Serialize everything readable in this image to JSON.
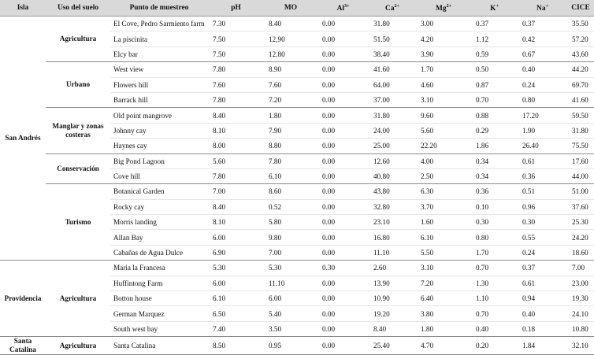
{
  "headers": {
    "isla": "Isla",
    "uso": "Uso del suelo",
    "punto": "Punto de muestreo",
    "ph": "pH",
    "mo": "MO",
    "al": "Al",
    "al_sup": "3+",
    "ca": "Ca",
    "ca_sup": "2+",
    "mg": "Mg",
    "mg_sup": "2+",
    "k": "K",
    "k_sup": "+",
    "na": "Na",
    "na_sup": "+",
    "cice": "CICE"
  },
  "islands": {
    "san_andres": "San Andrés",
    "providencia": "Providencia",
    "santa_catalina": "Santa Catalina"
  },
  "uses": {
    "agricultura_sa": "Agricultura",
    "urbano": "Urbano",
    "manglar": "Manglar y zonas costeras",
    "conservacion": "Conservación",
    "turismo": "Turismo",
    "agricultura_pr": "Agricultura",
    "agricultura_sc": "Agricultura"
  },
  "rows": [
    {
      "punto": "El Cove, Pedro Sarmiento farm",
      "ph": "7.30",
      "mo": "8.40",
      "al": "0.00",
      "ca": "31.80",
      "mg": "3.00",
      "k": "0.37",
      "na": "0.37",
      "cice": "35.50"
    },
    {
      "punto": "La piscinita",
      "ph": "7.50",
      "mo": "12,90",
      "al": "0.00",
      "ca": "51.50",
      "mg": "4.20",
      "k": "1.12",
      "na": "0.42",
      "cice": "57.20"
    },
    {
      "punto": "Elcy bar",
      "ph": "7.50",
      "mo": "12.80",
      "al": "0.00",
      "ca": "38.40",
      "mg": "3.90",
      "k": "0.59",
      "na": "0.67",
      "cice": "43.60"
    },
    {
      "punto": "West view",
      "ph": "7.80",
      "mo": "8.90",
      "al": "0.00",
      "ca": "41.60",
      "mg": "1.70",
      "k": "0.50",
      "na": "0.40",
      "cice": "44.20"
    },
    {
      "punto": "Flowers hill",
      "ph": "7.60",
      "mo": "7.60",
      "al": "0.00",
      "ca": "64.00",
      "mg": "4.60",
      "k": "0.87",
      "na": "0.24",
      "cice": "69.70"
    },
    {
      "punto": "Barrack hill",
      "ph": "7.80",
      "mo": "7.20",
      "al": "0.00",
      "ca": "37.00",
      "mg": "3.10",
      "k": "0.70",
      "na": "0.80",
      "cice": "41.60"
    },
    {
      "punto": "Old point mangrove",
      "ph": "8.40",
      "mo": "1.80",
      "al": "0.00",
      "ca": "31.80",
      "mg": "9.60",
      "k": "0.88",
      "na": "17.20",
      "cice": "59.50"
    },
    {
      "punto": "Johnny cay",
      "ph": "8.10",
      "mo": "7.90",
      "al": "0.00",
      "ca": "24.00",
      "mg": "5.60",
      "k": "0.29",
      "na": "1.90",
      "cice": "31.80"
    },
    {
      "punto": "Haynes cay",
      "ph": "8.00",
      "mo": "8.80",
      "al": "0.00",
      "ca": "25.00",
      "mg": "22.20",
      "k": "1.86",
      "na": "26.40",
      "cice": "75.50"
    },
    {
      "punto": "Big Pond Lagoon",
      "ph": "5.60",
      "mo": "7.80",
      "al": "0.00",
      "ca": "12.60",
      "mg": "4.00",
      "k": "0.34",
      "na": "0.61",
      "cice": "17.60"
    },
    {
      "punto": "Cove hill",
      "ph": "7.80",
      "mo": "6.10",
      "al": "0.00",
      "ca": "40.80",
      "mg": "2.50",
      "k": "0.34",
      "na": "0.36",
      "cice": "44.00"
    },
    {
      "punto": "Botanical Garden",
      "ph": "7.00",
      "mo": "8.60",
      "al": "0.00",
      "ca": "43.80",
      "mg": "6.30",
      "k": "0.36",
      "na": "0.51",
      "cice": "51.00"
    },
    {
      "punto": "Rocky cay",
      "ph": "8.40",
      "mo": "0.52",
      "al": "0.00",
      "ca": "32.80",
      "mg": "3.70",
      "k": "0.10",
      "na": "0.96",
      "cice": "37.60"
    },
    {
      "punto": "Morris landing",
      "ph": "8.10",
      "mo": "5.80",
      "al": "0.00",
      "ca": "23.10",
      "mg": "1.60",
      "k": "0.30",
      "na": "0.30",
      "cice": "25.30"
    },
    {
      "punto": "Allan Bay",
      "ph": "6.00",
      "mo": "9.80",
      "al": "0.00",
      "ca": "16.80",
      "mg": "6.10",
      "k": "0.80",
      "na": "0.55",
      "cice": "24.20"
    },
    {
      "punto": "Cabañas de Agua Dulce",
      "ph": "6.90",
      "mo": "7.00",
      "al": "0.00",
      "ca": "11.10",
      "mg": "5.50",
      "k": "1.70",
      "na": "0.24",
      "cice": "18.60"
    },
    {
      "punto": "Maria la Francesa",
      "ph": "5.30",
      "mo": "5.30",
      "al": "0.30",
      "ca": "2.60",
      "mg": "3.10",
      "k": "0.70",
      "na": "0.37",
      "cice": "7.00"
    },
    {
      "punto": "Huffintong Farm",
      "ph": "6.00",
      "mo": "11.10",
      "al": "0.00",
      "ca": "13.90",
      "mg": "7.20",
      "k": "1.30",
      "na": "0.61",
      "cice": "23.00"
    },
    {
      "punto": "Botton house",
      "ph": "6.10",
      "mo": "6.00",
      "al": "0.00",
      "ca": "10.90",
      "mg": "6.40",
      "k": "1.10",
      "na": "0.94",
      "cice": "19.30"
    },
    {
      "punto": "German Marquez",
      "ph": "6.50",
      "mo": "5.40",
      "al": "0.00",
      "ca": "19.20",
      "mg": "3.80",
      "k": "0.70",
      "na": "0.40",
      "cice": "24.10"
    },
    {
      "punto": "South west bay",
      "ph": "7.40",
      "mo": "3.50",
      "al": "0.00",
      "ca": "8.40",
      "mg": "1.80",
      "k": "0.40",
      "na": "0.18",
      "cice": "10.80"
    },
    {
      "punto": "Santa Catalina",
      "ph": "8.50",
      "mo": "0.95",
      "al": "0.00",
      "ca": "25.40",
      "mg": "4.70",
      "k": "0.20",
      "na": "1.84",
      "cice": "32.10"
    }
  ]
}
